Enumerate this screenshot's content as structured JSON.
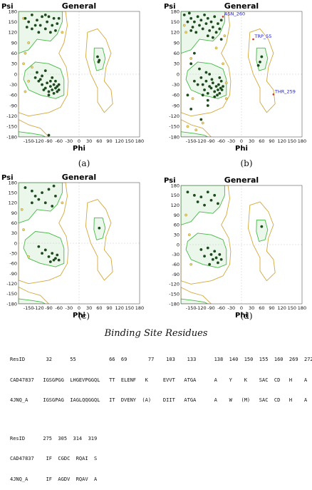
{
  "panels": [
    {
      "title": "General",
      "y_label": "Psi",
      "x_label": "Phi",
      "caption": "(a)",
      "annotations": []
    },
    {
      "title": "General",
      "y_label": "Psi",
      "x_label": "Phi",
      "caption": "(b)",
      "annotations": [
        {
          "text": "ASN_260",
          "phi": -55,
          "psi": 165
        },
        {
          "text": "TRP_55",
          "phi": 35,
          "psi": 100
        },
        {
          "text": "THR_259",
          "phi": 95,
          "psi": -58
        }
      ]
    },
    {
      "title": "General",
      "y_label": "Psi",
      "x_label": "Phi",
      "caption": "(c)",
      "annotations": []
    },
    {
      "title": "General",
      "y_label": "Psi",
      "x_label": "Phi",
      "caption": "(d)",
      "annotations": []
    }
  ],
  "x_ticks": [
    "-150",
    "-120",
    "-90",
    "-60",
    "-30",
    "0",
    "30",
    "60",
    "90",
    "120",
    "150",
    "180"
  ],
  "y_ticks": [
    "180",
    "150",
    "120",
    "90",
    "60",
    "30",
    "0",
    "-30",
    "-60",
    "-90",
    "-120",
    "-150",
    "-180"
  ],
  "colors": {
    "favored_region": "#eaf7ea",
    "favored_line": "#44bb44",
    "allowed_line": "#d4a83c",
    "residue_dot": "#1f4a1f",
    "outlier_dot": "#e8d070",
    "annotation": "#2020cc"
  },
  "chart_data": [
    {
      "type": "scatter",
      "title": "General",
      "xlabel": "Phi",
      "ylabel": "Psi",
      "xlim": [
        -180,
        180
      ],
      "ylim": [
        -180,
        180
      ],
      "series": [
        {
          "points": [
            [
              -160,
              160
            ],
            [
              -150,
              150
            ],
            [
              -140,
              170
            ],
            [
              -130,
              140
            ],
            [
              -125,
              155
            ],
            [
              -110,
              165
            ],
            [
              -100,
              130
            ],
            [
              -95,
              150
            ],
            [
              -80,
              140
            ],
            [
              -75,
              160
            ],
            [
              -70,
              125
            ],
            [
              -120,
              120
            ],
            [
              -140,
              130
            ],
            [
              -100,
              170
            ],
            [
              -85,
              120
            ],
            [
              -65,
              145
            ],
            [
              -155,
              135
            ],
            [
              -115,
              140
            ],
            [
              -90,
              165
            ],
            [
              -60,
              160
            ],
            [
              -130,
              -10
            ],
            [
              -120,
              -20
            ],
            [
              -110,
              -30
            ],
            [
              -100,
              -40
            ],
            [
              -95,
              -25
            ],
            [
              -90,
              -50
            ],
            [
              -85,
              -35
            ],
            [
              -80,
              -45
            ],
            [
              -75,
              -30
            ],
            [
              -70,
              -40
            ],
            [
              -65,
              -50
            ],
            [
              -60,
              -45
            ],
            [
              -70,
              -20
            ],
            [
              -80,
              -10
            ],
            [
              -90,
              -60
            ],
            [
              -100,
              10
            ],
            [
              -110,
              -5
            ],
            [
              -125,
              5
            ],
            [
              -60,
              -30
            ],
            [
              -75,
              -55
            ],
            [
              -85,
              -20
            ],
            [
              -105,
              -45
            ],
            [
              -115,
              -15
            ],
            [
              -65,
              -35
            ],
            [
              60,
              40
            ],
            [
              55,
              50
            ],
            [
              58,
              35
            ],
            [
              -90,
              -175
            ]
          ]
        },
        {
          "points": [
            [
              -165,
              160
            ],
            [
              -150,
              90
            ],
            [
              -160,
              60
            ],
            [
              -140,
              20
            ],
            [
              -165,
              30
            ],
            [
              -50,
              120
            ],
            [
              -150,
              -20
            ],
            [
              -160,
              -50
            ]
          ]
        }
      ]
    },
    {
      "type": "scatter",
      "title": "General",
      "xlabel": "Phi",
      "ylabel": "Psi",
      "xlim": [
        -180,
        180
      ],
      "ylim": [
        -180,
        180
      ],
      "series": [
        {
          "points": [
            [
              -170,
              170
            ],
            [
              -160,
              150
            ],
            [
              -150,
              160
            ],
            [
              -145,
              135
            ],
            [
              -140,
              150
            ],
            [
              -130,
              165
            ],
            [
              -125,
              140
            ],
            [
              -120,
              155
            ],
            [
              -115,
              130
            ],
            [
              -110,
              170
            ],
            [
              -105,
              145
            ],
            [
              -100,
              160
            ],
            [
              -95,
              125
            ],
            [
              -90,
              150
            ],
            [
              -85,
              135
            ],
            [
              -80,
              165
            ],
            [
              -75,
              120
            ],
            [
              -70,
              145
            ],
            [
              -65,
              130
            ],
            [
              -60,
              155
            ],
            [
              -135,
              120
            ],
            [
              -150,
              125
            ],
            [
              -100,
              110
            ],
            [
              -85,
              105
            ],
            [
              -60,
              100
            ],
            [
              -155,
              175
            ],
            [
              -120,
              -10
            ],
            [
              -115,
              -30
            ],
            [
              -110,
              -45
            ],
            [
              -105,
              -20
            ],
            [
              -100,
              -55
            ],
            [
              -95,
              -35
            ],
            [
              -90,
              -40
            ],
            [
              -85,
              -25
            ],
            [
              -80,
              -50
            ],
            [
              -75,
              -35
            ],
            [
              -70,
              -45
            ],
            [
              -68,
              -30
            ],
            [
              -65,
              -55
            ],
            [
              -62,
              -40
            ],
            [
              -60,
              -20
            ],
            [
              -58,
              -45
            ],
            [
              -55,
              -35
            ],
            [
              -72,
              -60
            ],
            [
              -88,
              -15
            ],
            [
              -95,
              0
            ],
            [
              -105,
              5
            ],
            [
              -125,
              15
            ],
            [
              -80,
              -65
            ],
            [
              -65,
              -10
            ],
            [
              -130,
              -30
            ],
            [
              -140,
              -20
            ],
            [
              -115,
              -60
            ],
            [
              -100,
              -75
            ],
            [
              60,
              50
            ],
            [
              55,
              35
            ],
            [
              50,
              25
            ],
            [
              -150,
              30
            ],
            [
              -140,
              60
            ],
            [
              -160,
              -60
            ],
            [
              -150,
              -100
            ],
            [
              -120,
              -130
            ],
            [
              -100,
              -90
            ]
          ]
        },
        {
          "points": [
            [
              -170,
              140
            ],
            [
              -165,
              120
            ],
            [
              -150,
              45
            ],
            [
              -145,
              -70
            ],
            [
              -160,
              -150
            ],
            [
              -135,
              -160
            ],
            [
              -50,
              110
            ],
            [
              -75,
              75
            ],
            [
              -45,
              -70
            ],
            [
              -55,
              30
            ],
            [
              -115,
              -140
            ],
            [
              -45,
              -25
            ]
          ]
        }
      ]
    },
    {
      "type": "scatter",
      "title": "General",
      "xlabel": "Phi",
      "ylabel": "Psi",
      "xlim": [
        -180,
        180
      ],
      "ylim": [
        -180,
        180
      ],
      "series": [
        {
          "points": [
            [
              -160,
              165
            ],
            [
              -140,
              155
            ],
            [
              -130,
              140
            ],
            [
              -120,
              130
            ],
            [
              -110,
              150
            ],
            [
              -100,
              120
            ],
            [
              -90,
              160
            ],
            [
              -80,
              110
            ],
            [
              -70,
              140
            ],
            [
              -75,
              170
            ],
            [
              -140,
              120
            ],
            [
              -100,
              -20
            ],
            [
              -90,
              -40
            ],
            [
              -80,
              -30
            ],
            [
              -75,
              -50
            ],
            [
              -70,
              -45
            ],
            [
              -65,
              -35
            ],
            [
              -60,
              -50
            ],
            [
              -85,
              -55
            ],
            [
              -120,
              -10
            ],
            [
              -110,
              -30
            ],
            [
              60,
              45
            ]
          ]
        },
        {
          "points": [
            [
              -170,
              100
            ],
            [
              -165,
              40
            ],
            [
              -150,
              -40
            ],
            [
              -50,
              120
            ]
          ]
        }
      ]
    },
    {
      "type": "scatter",
      "title": "General",
      "xlabel": "Phi",
      "ylabel": "Psi",
      "xlim": [
        -180,
        180
      ],
      "ylim": [
        -180,
        180
      ],
      "series": [
        {
          "points": [
            [
              -160,
              160
            ],
            [
              -140,
              150
            ],
            [
              -130,
              130
            ],
            [
              -120,
              145
            ],
            [
              -110,
              120
            ],
            [
              -100,
              160
            ],
            [
              -90,
              135
            ],
            [
              -80,
              150
            ],
            [
              -70,
              125
            ],
            [
              -100,
              -10
            ],
            [
              -90,
              -30
            ],
            [
              -85,
              -45
            ],
            [
              -80,
              -20
            ],
            [
              -75,
              -40
            ],
            [
              -70,
              -55
            ],
            [
              -65,
              -30
            ],
            [
              -60,
              -45
            ],
            [
              -95,
              -60
            ],
            [
              -110,
              -35
            ],
            [
              -120,
              -15
            ],
            [
              60,
              55
            ]
          ]
        },
        {
          "points": [
            [
              -165,
              90
            ],
            [
              -155,
              30
            ],
            [
              -150,
              -60
            ]
          ]
        }
      ]
    }
  ],
  "binding_site": {
    "title": "Binding Site Residues",
    "rows": [
      "ResID       32      55           66  69       77    103    133      138  140  150  155  160  269  272",
      "CAD47837   IGSGPGG  LHGEVPGGQL   TT  ELENF   K     EVVT   ATGA      A    Y    K    SAC  CD   H    A",
      "4JNQ_A     IGSGPAG  IAGLQQGGQL   IT  DVENY  (A)    DIIT   ATGA      A    W   (M)   SAC  CD   H    A",
      "",
      "ResID      275  305  314  319",
      "CAD47837    IF  CGDC  RQAI  S",
      "4JNQ_A      IF  AGDV  RQAV  A"
    ]
  }
}
